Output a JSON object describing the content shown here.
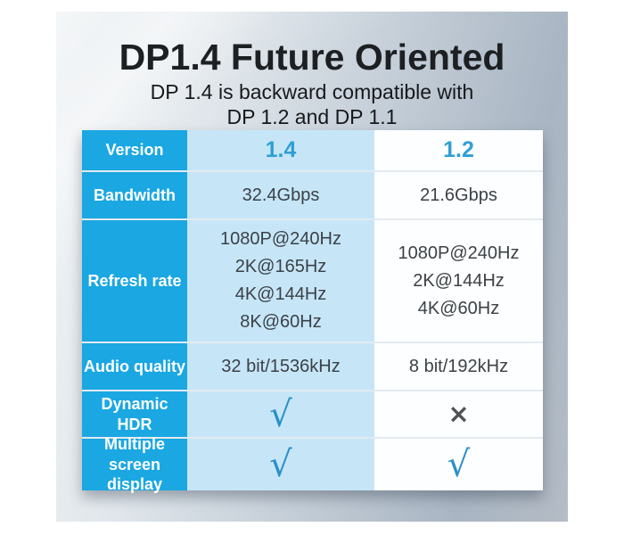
{
  "header": {
    "title": "DP1.4 Future Oriented",
    "subtitle": "DP 1.4 is backward compatible with\nDP 1.2 and DP 1.1"
  },
  "table": {
    "rows": [
      {
        "label": "Version",
        "dp14": "1.4",
        "dp12": "1.2"
      },
      {
        "label": "Bandwidth",
        "dp14": "32.4Gbps",
        "dp12": "21.6Gbps"
      },
      {
        "label": "Refresh rate",
        "dp14": [
          "1080P@240Hz",
          "2K@165Hz",
          "4K@144Hz",
          "8K@60Hz"
        ],
        "dp12": [
          "1080P@240Hz",
          "2K@144Hz",
          "4K@60Hz"
        ]
      },
      {
        "label": "Audio quality",
        "dp14": "32 bit/1536kHz",
        "dp12": "8 bit/192kHz"
      },
      {
        "label": "Dynamic HDR",
        "dp14": "check",
        "dp12": "cross"
      },
      {
        "label": "Multiple screen\ndisplay",
        "dp14": "check",
        "dp12": "check"
      }
    ]
  },
  "glyphs": {
    "check": "√",
    "cross": "×"
  },
  "colors": {
    "label_teal": "#1aa7e2",
    "dp14_column_blue": "#c6e6f8",
    "dp12_column_white": "#fdfeff",
    "version_value_blue": "#2f9fd6",
    "check_blue": "#2a90c8",
    "cross_gray": "#4f5254"
  }
}
